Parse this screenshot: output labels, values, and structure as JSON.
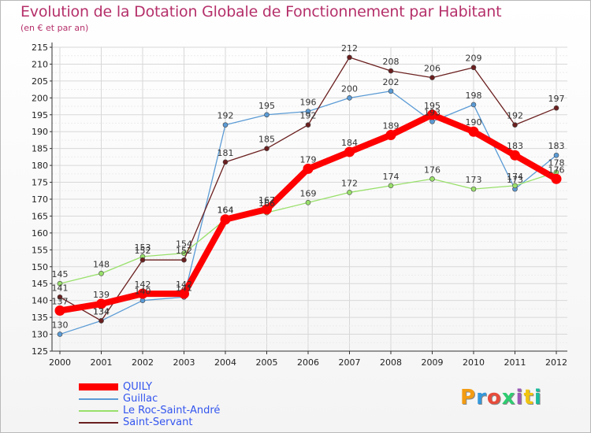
{
  "chart_data": {
    "type": "line",
    "title": "Evolution de la Dotation Globale de Fonctionnement par Habitant",
    "subtitle": "(en € et par an)",
    "xlabel": "",
    "ylabel": "",
    "x": [
      "2000",
      "2001",
      "2002",
      "2003",
      "2004",
      "2005",
      "2006",
      "2007",
      "2008",
      "2009",
      "2010",
      "2011",
      "2012"
    ],
    "ylim": [
      125,
      215
    ],
    "yticks": [
      125,
      130,
      135,
      140,
      145,
      150,
      155,
      160,
      165,
      170,
      175,
      180,
      185,
      190,
      195,
      200,
      205,
      210,
      215
    ],
    "series": [
      {
        "name": "Guillac",
        "color": "#5b9bd5",
        "values": [
          130,
          134,
          140,
          141,
          192,
          195,
          196,
          200,
          202,
          193,
          198,
          173,
          183
        ]
      },
      {
        "name": "Le Roc-Saint-André",
        "color": "#99e06b",
        "values": [
          145,
          148,
          153,
          154,
          164,
          166,
          169,
          172,
          174,
          176,
          173,
          174,
          178
        ]
      },
      {
        "name": "Saint-Servant",
        "color": "#6b1f1f",
        "values": [
          141,
          134,
          152,
          152,
          181,
          185,
          192,
          212,
          208,
          206,
          209,
          192,
          197
        ]
      },
      {
        "name": "QUILY",
        "color": "#ff0000",
        "values": [
          137,
          139,
          142,
          142,
          164,
          167,
          179,
          184,
          189,
          195,
          190,
          183,
          176
        ]
      }
    ]
  },
  "legend": {
    "items": [
      {
        "label": "QUILY",
        "color": "#ff0000"
      },
      {
        "label": "Guillac",
        "color": "#5b9bd5"
      },
      {
        "label": "Le Roc-Saint-André",
        "color": "#99e06b"
      },
      {
        "label": "Saint-Servant",
        "color": "#6b1f1f"
      }
    ]
  },
  "logo": {
    "letters": [
      "P",
      "r",
      "o",
      "x",
      "i",
      "t",
      "i"
    ],
    "colors": [
      "#f39c12",
      "#3498db",
      "#e74c3c",
      "#2ecc71",
      "#9b59b6",
      "#f1c40f",
      "#1abc9c"
    ]
  }
}
